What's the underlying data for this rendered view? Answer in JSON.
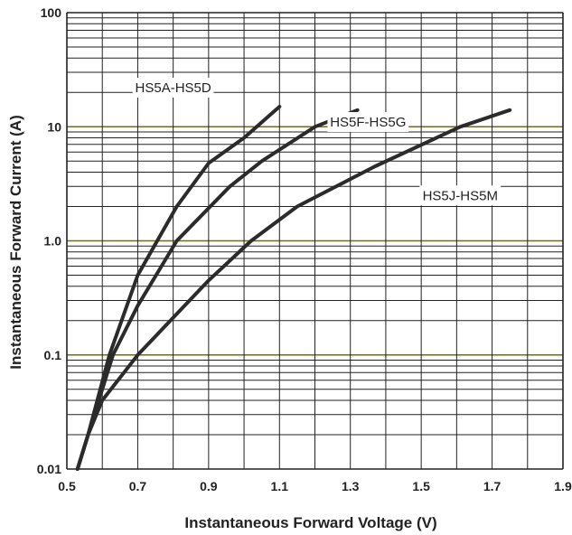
{
  "chart_data": {
    "type": "line",
    "title": "",
    "xlabel": "Instantaneous Forward Voltage (V)",
    "ylabel": "Instantaneous Forward Current (A)",
    "xlim": [
      0.5,
      1.9
    ],
    "ylim": [
      0.01,
      100
    ],
    "y_scale": "log",
    "x_ticks": [
      "0.5",
      "0.7",
      "0.9",
      "1.1",
      "1.3",
      "1.5",
      "1.7",
      "1.9"
    ],
    "y_ticks": [
      "0.01",
      "0.1",
      "1.0",
      "10",
      "100"
    ],
    "grid": true,
    "series": [
      {
        "name": "HS5A-HS5D",
        "points": [
          [
            0.53,
            0.01
          ],
          [
            0.56,
            0.02
          ],
          [
            0.62,
            0.1
          ],
          [
            0.7,
            0.5
          ],
          [
            0.81,
            2.0
          ],
          [
            0.9,
            4.8
          ],
          [
            1.0,
            8.0
          ],
          [
            1.1,
            15.0
          ]
        ]
      },
      {
        "name": "HS5F-HS5G",
        "points": [
          [
            0.53,
            0.01
          ],
          [
            0.56,
            0.02
          ],
          [
            0.63,
            0.1
          ],
          [
            0.7,
            0.27
          ],
          [
            0.81,
            1.0
          ],
          [
            0.96,
            3.0
          ],
          [
            1.05,
            5.0
          ],
          [
            1.2,
            10.0
          ],
          [
            1.32,
            14.0
          ]
        ]
      },
      {
        "name": "HS5J-HS5M",
        "points": [
          [
            0.53,
            0.01
          ],
          [
            0.56,
            0.02
          ],
          [
            0.6,
            0.04
          ],
          [
            0.7,
            0.1
          ],
          [
            0.9,
            0.45
          ],
          [
            1.02,
            1.0
          ],
          [
            1.15,
            2.0
          ],
          [
            1.37,
            4.5
          ],
          [
            1.61,
            10.0
          ],
          [
            1.75,
            14.0
          ]
        ]
      }
    ]
  }
}
